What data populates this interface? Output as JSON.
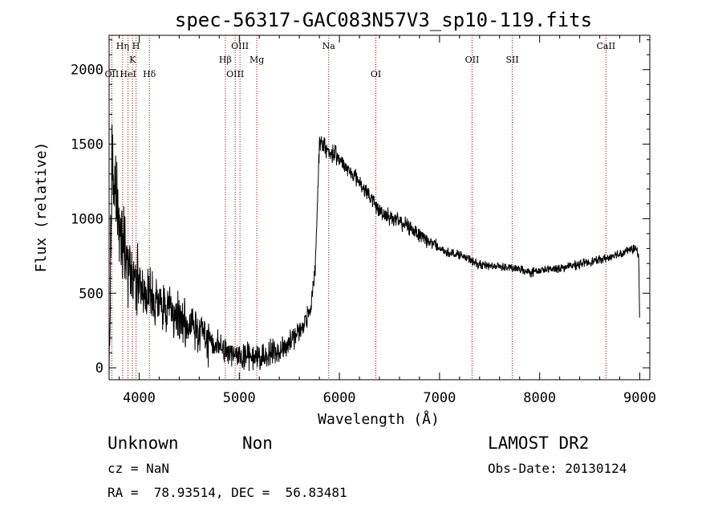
{
  "chart_data": {
    "type": "line",
    "title": "spec-56317-GAC083N57V3_sp10-119.fits",
    "xlabel": "Wavelength (Å)",
    "ylabel": "Flux (relative)",
    "xlim": [
      3700,
      9100
    ],
    "ylim": [
      -80,
      2230
    ],
    "x_ticks": [
      4000,
      5000,
      6000,
      7000,
      8000,
      9000
    ],
    "y_ticks": [
      0,
      500,
      1000,
      1500,
      2000
    ],
    "x_tick_labels": [
      "4000",
      "5000",
      "6000",
      "7000",
      "8000",
      "9000"
    ],
    "y_tick_labels": [
      "0",
      "500",
      "1000",
      "1500",
      "2000"
    ],
    "grid": false,
    "line_color": "#000000",
    "marker_color": "#8b0000",
    "spectrum_anchors": {
      "x": [
        3700,
        3705,
        3730,
        3760,
        3790,
        3830,
        3880,
        3950,
        4050,
        4200,
        4400,
        4600,
        4800,
        5000,
        5200,
        5400,
        5550,
        5650,
        5720,
        5760,
        5800,
        5850,
        5900,
        6000,
        6200,
        6400,
        6600,
        6800,
        6950,
        7050,
        7200,
        7400,
        7600,
        7800,
        7900,
        8100,
        8300,
        8500,
        8700,
        8850,
        8950,
        8990,
        9000
      ],
      "y": [
        0,
        250,
        1350,
        1200,
        1050,
        900,
        720,
        600,
        520,
        430,
        330,
        230,
        150,
        80,
        70,
        120,
        200,
        300,
        420,
        700,
        1500,
        1480,
        1450,
        1400,
        1250,
        1050,
        980,
        900,
        820,
        780,
        760,
        690,
        680,
        660,
        640,
        660,
        680,
        710,
        740,
        780,
        800,
        760,
        200
      ]
    },
    "spectral_lines": [
      {
        "label": "OII",
        "x": 3727,
        "tier": 3
      },
      {
        "label": "Hη",
        "x": 3835,
        "tier": 1
      },
      {
        "label": "HeI",
        "x": 3889,
        "tier": 3
      },
      {
        "label": "K",
        "x": 3934,
        "tier": 2
      },
      {
        "label": "H",
        "x": 3969,
        "tier": 1
      },
      {
        "label": "Hδ",
        "x": 4102,
        "tier": 3
      },
      {
        "label": "Hβ",
        "x": 4861,
        "tier": 2
      },
      {
        "label": "OIII",
        "x": 4959,
        "tier": 3
      },
      {
        "label": "OIII",
        "x": 5007,
        "tier": 1
      },
      {
        "label": "Mg",
        "x": 5175,
        "tier": 2
      },
      {
        "label": "Na",
        "x": 5893,
        "tier": 1
      },
      {
        "label": "OI",
        "x": 6364,
        "tier": 3
      },
      {
        "label": "OII",
        "x": 7325,
        "tier": 2
      },
      {
        "label": "SII",
        "x": 7727,
        "tier": 2
      },
      {
        "label": "CaII",
        "x": 8662,
        "tier": 1
      }
    ]
  },
  "info": {
    "object_class": "Unknown",
    "object_subclass": "Non",
    "redshift_line": "cz = NaN",
    "coords_line": "RA =  78.93514, DEC =  56.83481",
    "survey": "LAMOST DR2",
    "obs_date_line": "Obs-Date: 20130124"
  }
}
